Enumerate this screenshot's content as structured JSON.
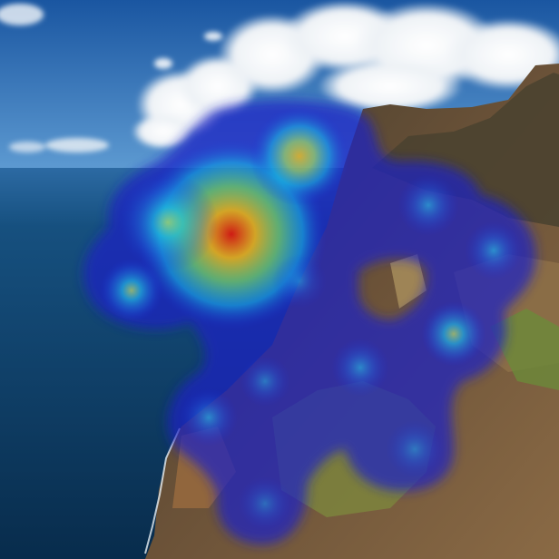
{
  "scene": {
    "description_hidden": "",
    "colors": {
      "sky_top": "#1d5ea8",
      "sky_bottom": "#5c98cf",
      "cloud": "#f3f6f9",
      "ocean_deep": "#0b3a63",
      "ocean_mid": "#135286",
      "cliff_dark": "#4a3a28",
      "cliff_mid": "#7a5a3e",
      "cliff_green": "#6f8a3a",
      "cliff_light": "#a58b5a",
      "heat_base": "#1a1fb8"
    }
  },
  "heatmap": {
    "hotspots": [
      {
        "id": "hotspot-main",
        "intensity": 1.0
      },
      {
        "id": "hotspot-top",
        "intensity": 0.7
      },
      {
        "id": "hotspot-left",
        "intensity": 0.55
      },
      {
        "id": "hotspot-right-upper",
        "intensity": 0.45
      },
      {
        "id": "hotspot-right-mid",
        "intensity": 0.5
      },
      {
        "id": "hotspot-right",
        "intensity": 0.5
      },
      {
        "id": "hotspot-center",
        "intensity": 0.4
      },
      {
        "id": "hotspot-lower-left",
        "intensity": 0.45
      },
      {
        "id": "hotspot-lower-right",
        "intensity": 0.4
      },
      {
        "id": "hotspot-bottom",
        "intensity": 0.35
      }
    ]
  }
}
